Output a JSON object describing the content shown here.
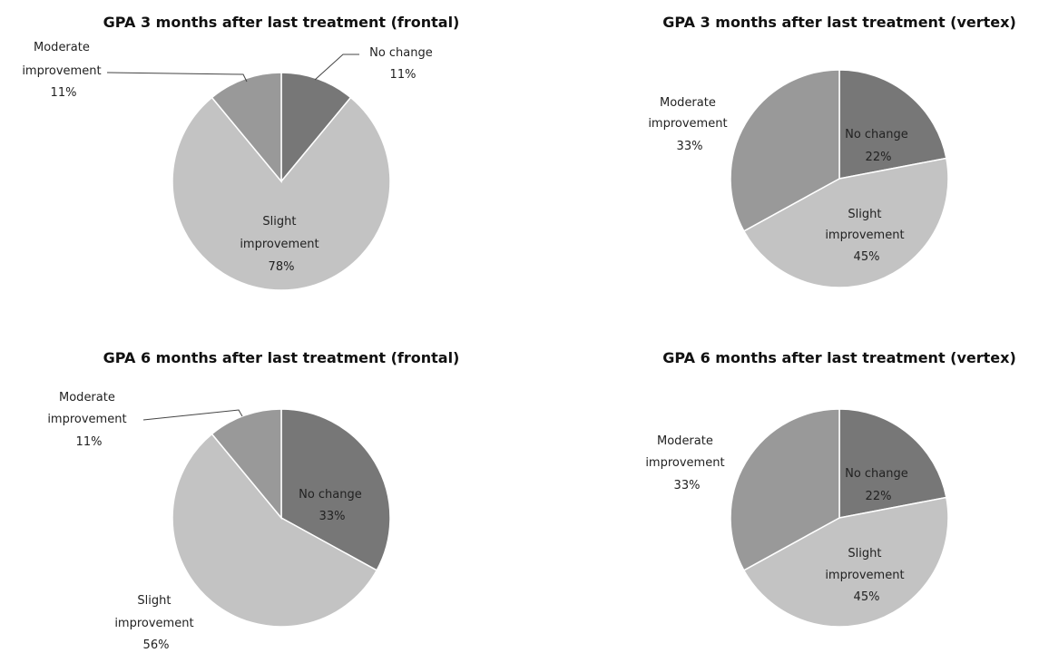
{
  "chart_data": [
    {
      "type": "pie",
      "title": "GPA 3 months after last treatment (frontal)",
      "series": [
        {
          "name": "No change",
          "value": 11,
          "percent_label": "11%",
          "color": "#777777"
        },
        {
          "name": "Slight improvement",
          "value": 78,
          "percent_label": "78%",
          "color": "#c3c3c3"
        },
        {
          "name": "Moderate improvement",
          "value": 11,
          "percent_label": "11%",
          "color": "#999999"
        }
      ]
    },
    {
      "type": "pie",
      "title": "GPA 3 months after last treatment (vertex)",
      "series": [
        {
          "name": "No change",
          "value": 22,
          "percent_label": "22%",
          "color": "#777777"
        },
        {
          "name": "Slight improvement",
          "value": 45,
          "percent_label": "45%",
          "color": "#c3c3c3"
        },
        {
          "name": "Moderate improvement",
          "value": 33,
          "percent_label": "33%",
          "color": "#999999"
        }
      ]
    },
    {
      "type": "pie",
      "title": "GPA 6 months after last treatment (frontal)",
      "series": [
        {
          "name": "No change",
          "value": 33,
          "percent_label": "33%",
          "color": "#777777"
        },
        {
          "name": "Slight improvement",
          "value": 56,
          "percent_label": "56%",
          "color": "#c3c3c3"
        },
        {
          "name": "Moderate improvement",
          "value": 11,
          "percent_label": "11%",
          "color": "#999999"
        }
      ]
    },
    {
      "type": "pie",
      "title": "GPA 6 months after last treatment (vertex)",
      "series": [
        {
          "name": "No change",
          "value": 22,
          "percent_label": "22%",
          "color": "#777777"
        },
        {
          "name": "Slight improvement",
          "value": 45,
          "percent_label": "45%",
          "color": "#c3c3c3"
        },
        {
          "name": "Moderate improvement",
          "value": 33,
          "percent_label": "33%",
          "color": "#999999"
        }
      ]
    }
  ]
}
